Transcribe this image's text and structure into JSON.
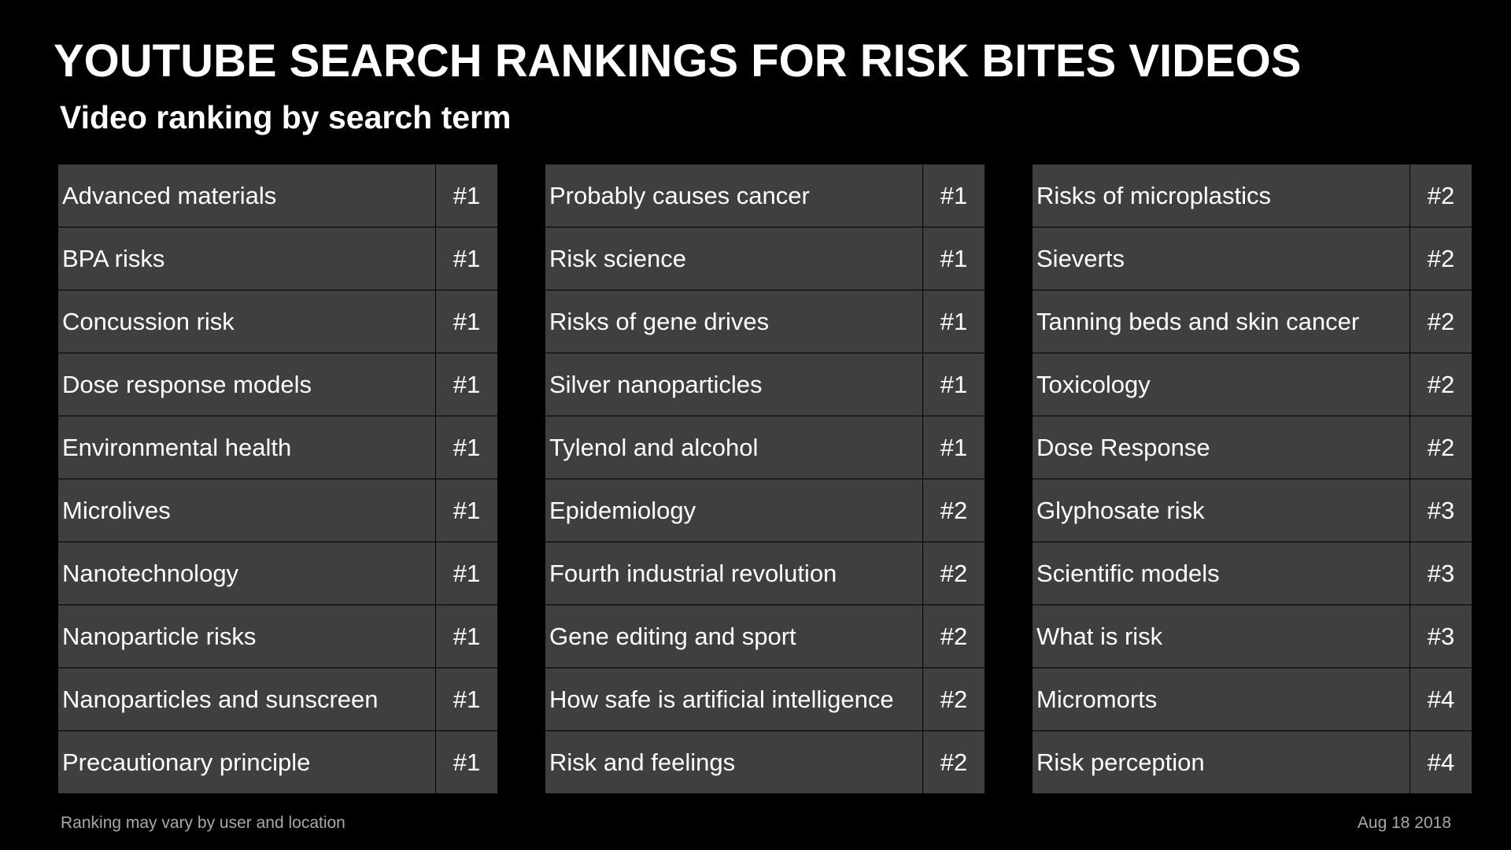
{
  "title": "YOUTUBE SEARCH RANKINGS FOR RISK BITES VIDEOS",
  "subtitle": "Video ranking by search term",
  "tables": [
    {
      "rows": [
        {
          "term": "Advanced materials",
          "rank": "#1"
        },
        {
          "term": "BPA risks",
          "rank": "#1"
        },
        {
          "term": "Concussion risk",
          "rank": "#1"
        },
        {
          "term": "Dose response models",
          "rank": "#1"
        },
        {
          "term": "Environmental health",
          "rank": "#1"
        },
        {
          "term": "Microlives",
          "rank": "#1"
        },
        {
          "term": "Nanotechnology",
          "rank": "#1"
        },
        {
          "term": "Nanoparticle risks",
          "rank": "#1"
        },
        {
          "term": "Nanoparticles and sunscreen",
          "rank": "#1"
        },
        {
          "term": "Precautionary principle",
          "rank": "#1"
        }
      ]
    },
    {
      "rows": [
        {
          "term": "Probably causes cancer",
          "rank": "#1"
        },
        {
          "term": "Risk science",
          "rank": "#1"
        },
        {
          "term": "Risks of gene drives",
          "rank": "#1"
        },
        {
          "term": "Silver nanoparticles",
          "rank": "#1"
        },
        {
          "term": "Tylenol and alcohol",
          "rank": "#1"
        },
        {
          "term": "Epidemiology",
          "rank": "#2"
        },
        {
          "term": "Fourth industrial revolution",
          "rank": "#2"
        },
        {
          "term": "Gene editing and sport",
          "rank": "#2"
        },
        {
          "term": "How safe is artificial intelligence",
          "rank": "#2"
        },
        {
          "term": "Risk and feelings",
          "rank": "#2"
        }
      ]
    },
    {
      "rows": [
        {
          "term": "Risks of microplastics",
          "rank": "#2"
        },
        {
          "term": "Sieverts",
          "rank": "#2"
        },
        {
          "term": "Tanning beds and skin cancer",
          "rank": "#2"
        },
        {
          "term": "Toxicology",
          "rank": "#2"
        },
        {
          "term": "Dose Response",
          "rank": "#2"
        },
        {
          "term": "Glyphosate risk",
          "rank": "#3"
        },
        {
          "term": "Scientific models",
          "rank": "#3"
        },
        {
          "term": "What is risk",
          "rank": "#3"
        },
        {
          "term": "Micromorts",
          "rank": "#4"
        },
        {
          "term": "Risk perception",
          "rank": "#4"
        }
      ]
    }
  ],
  "footer": {
    "note": "Ranking may vary by user and location",
    "date": "Aug 18 2018"
  },
  "colors": {
    "background": "#000000",
    "cell": "#3f3f3f",
    "text": "#ffffff",
    "footer_text": "#a8a8a8"
  }
}
